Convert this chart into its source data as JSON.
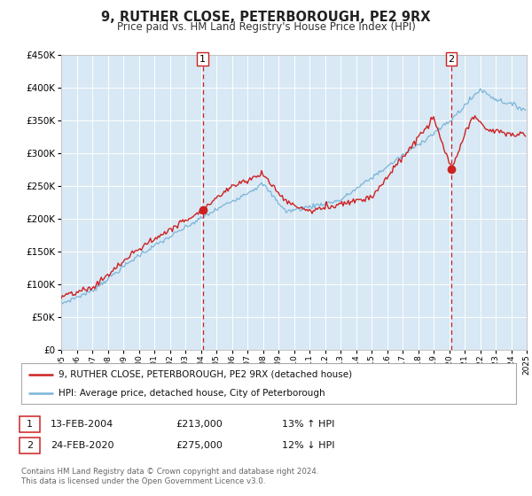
{
  "title": "9, RUTHER CLOSE, PETERBOROUGH, PE2 9RX",
  "subtitle": "Price paid vs. HM Land Registry's House Price Index (HPI)",
  "legend_line1": "9, RUTHER CLOSE, PETERBOROUGH, PE2 9RX (detached house)",
  "legend_line2": "HPI: Average price, detached house, City of Peterborough",
  "marker1_date": "13-FEB-2004",
  "marker1_price": 213000,
  "marker1_hpi": "13% ↑ HPI",
  "marker1_x": 2004.12,
  "marker2_date": "24-FEB-2020",
  "marker2_price": 275000,
  "marker2_hpi": "12% ↓ HPI",
  "marker2_x": 2020.15,
  "vline1_x": 2004.12,
  "vline2_x": 2020.15,
  "hpi_color": "#7ab5d8",
  "price_color": "#cc2222",
  "vline_color": "#cc2222",
  "bg_color": "#d8e8f4",
  "grid_color": "#ffffff",
  "ylim": [
    0,
    450000
  ],
  "xlim_start": 1995,
  "xlim_end": 2025,
  "footnote": "Contains HM Land Registry data © Crown copyright and database right 2024.\nThis data is licensed under the Open Government Licence v3.0."
}
